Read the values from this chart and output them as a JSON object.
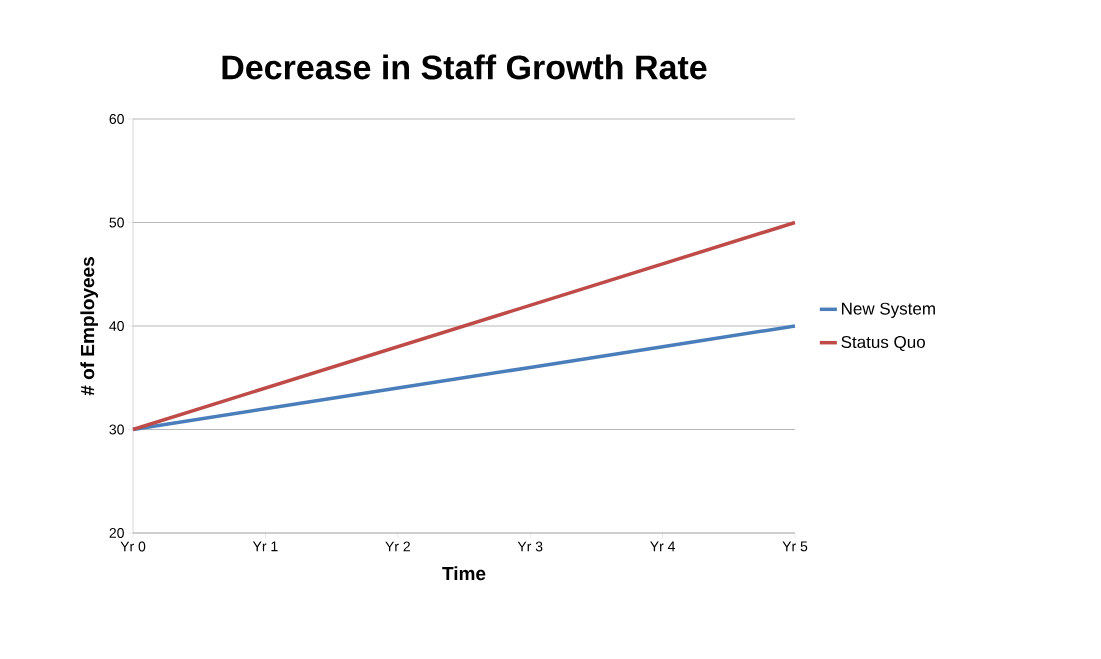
{
  "chart_data": {
    "type": "line",
    "title": "Decrease in Staff Growth Rate",
    "xlabel": "Time",
    "ylabel": "# of Employees",
    "categories": [
      "Yr 0",
      "Yr 1",
      "Yr 2",
      "Yr 3",
      "Yr 4",
      "Yr 5"
    ],
    "series": [
      {
        "name": "New System",
        "color": "#4a7ebb",
        "values": [
          30,
          32,
          34,
          36,
          38,
          40
        ]
      },
      {
        "name": "Status Quo",
        "color": "#be4b48",
        "values": [
          30,
          34,
          38,
          42,
          46,
          50
        ]
      }
    ],
    "ylim": [
      20,
      60
    ],
    "yticks": [
      20,
      30,
      40,
      50,
      60
    ],
    "grid": "y",
    "legend": "right"
  }
}
